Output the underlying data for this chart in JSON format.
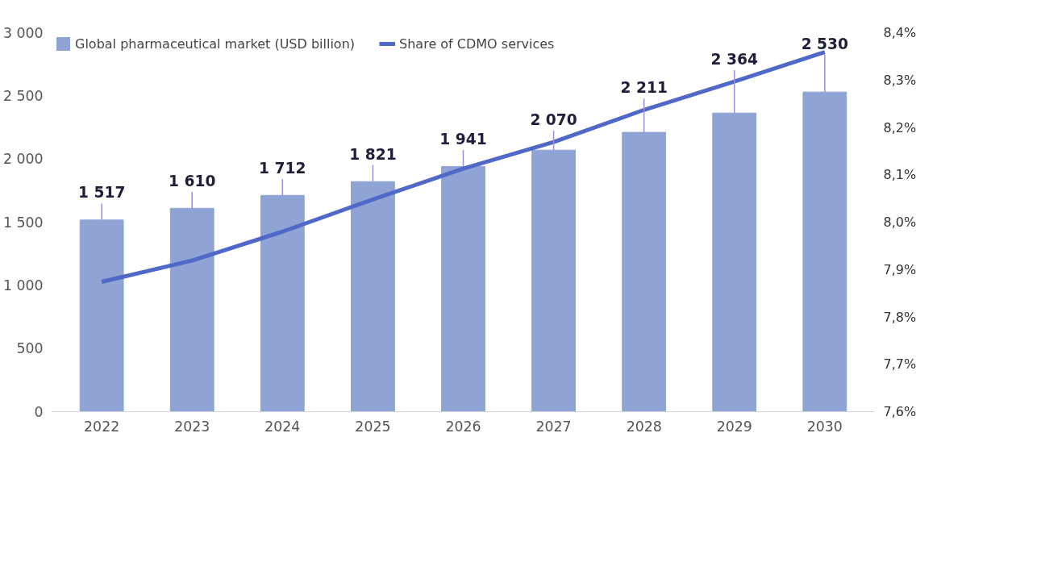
{
  "chart_data": {
    "type": "bar",
    "categories": [
      "2022",
      "2023",
      "2024",
      "2025",
      "2026",
      "2027",
      "2028",
      "2029",
      "2030"
    ],
    "series": [
      {
        "name": "Global pharmaceutical market (USD billion)",
        "color": "#8fa3d4",
        "values": [
          1517,
          1610,
          1712,
          1821,
          1941,
          2070,
          2211,
          2364,
          2530
        ],
        "value_labels": [
          "1 517",
          "1 610",
          "1 712",
          "1 821",
          "1 941",
          "2 070",
          "2 211",
          "2 364",
          "2 530"
        ]
      },
      {
        "name": "Share of CDMO services",
        "type": "line",
        "axis": "y2",
        "color": "#5068c8",
        "values": [
          7.874,
          7.919,
          7.98,
          8.048,
          8.113,
          8.169,
          8.237,
          8.297,
          8.359
        ]
      }
    ],
    "ylim": [
      0,
      3000
    ],
    "yticks": [
      0,
      500,
      {
        "value": 1000,
        "label": "1 000"
      },
      {
        "value": 1500,
        "label": "1 500"
      },
      {
        "value": 2000,
        "label": "2 000"
      },
      {
        "value": 2500,
        "label": "2 500"
      },
      {
        "value": 3000,
        "label": "3 000"
      }
    ],
    "y2lim": [
      7.6,
      8.4
    ],
    "y2ticks": [
      {
        "value": 7.6,
        "label": "7,6%"
      },
      {
        "value": 7.7,
        "label": "7,7%"
      },
      {
        "value": 7.8,
        "label": "7,8%"
      },
      {
        "value": 7.9,
        "label": "7,9%"
      },
      {
        "value": 8.0,
        "label": "8,0%"
      },
      {
        "value": 8.1,
        "label": "8,1%"
      },
      {
        "value": 8.2,
        "label": "8,2%"
      },
      {
        "value": 8.3,
        "label": "8,3%"
      },
      {
        "value": 8.4,
        "label": "8,4%"
      }
    ],
    "grid": false,
    "legend": "top left",
    "marker": "none",
    "line_style": "solid"
  }
}
